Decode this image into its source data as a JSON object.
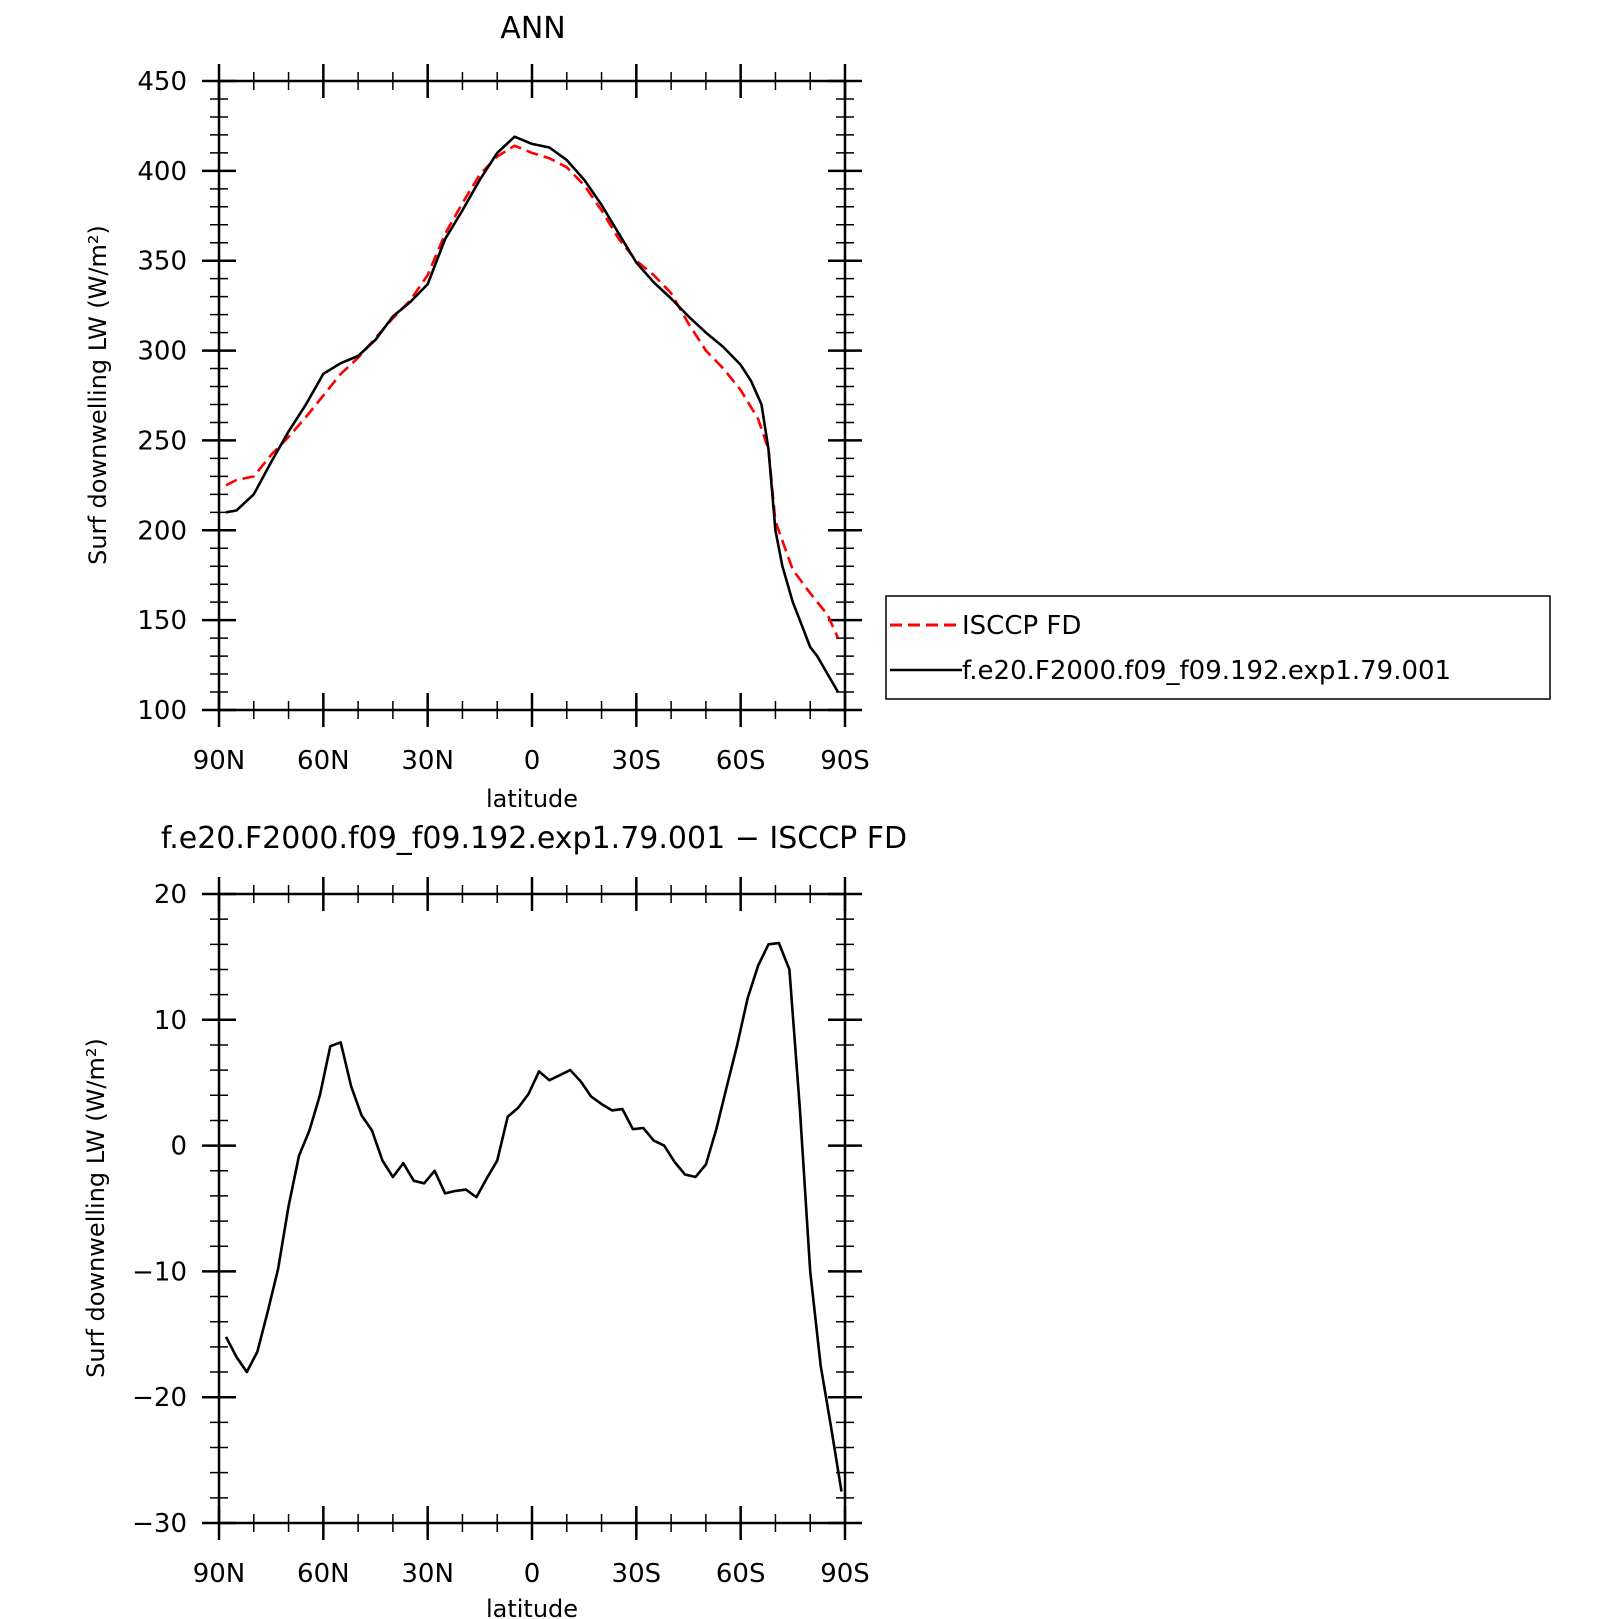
{
  "chart_data": [
    {
      "type": "line",
      "title": "ANN",
      "xlabel": "latitude",
      "ylabel": "Surf downwelling LW (W/m²)",
      "ylim": [
        100,
        450
      ],
      "yticks": [
        100,
        150,
        200,
        250,
        300,
        350,
        400,
        450
      ],
      "xlim": [
        90,
        -90
      ],
      "xticks": [
        90,
        60,
        30,
        0,
        -30,
        -60,
        -90
      ],
      "xtick_labels": [
        "90N",
        "60N",
        "30N",
        "0",
        "30S",
        "60S",
        "90S"
      ],
      "grid": false,
      "legend_position": "right",
      "series": [
        {
          "name": "ISCCP FD",
          "color": "#ff0000",
          "dash": "dashed",
          "x": [
            88,
            85,
            80,
            75,
            70,
            65,
            60,
            55,
            50,
            45,
            40,
            35,
            30,
            25,
            20,
            15,
            10,
            5,
            0,
            -5,
            -10,
            -15,
            -20,
            -25,
            -30,
            -35,
            -40,
            -45,
            -50,
            -55,
            -60,
            -65,
            -68,
            -70,
            -75,
            -80,
            -85,
            -88
          ],
          "y": [
            225,
            228,
            230,
            242,
            252,
            263,
            275,
            287,
            296,
            307,
            318,
            328,
            342,
            365,
            382,
            398,
            408,
            414,
            410,
            407,
            402,
            392,
            378,
            362,
            350,
            342,
            332,
            315,
            300,
            290,
            278,
            262,
            245,
            205,
            178,
            165,
            153,
            140
          ]
        },
        {
          "name": "f.e20.F2000.f09_f09.192.exp1.79.001",
          "color": "#000000",
          "dash": "solid",
          "x": [
            88,
            85,
            80,
            75,
            70,
            65,
            60,
            55,
            50,
            45,
            40,
            35,
            30,
            25,
            20,
            15,
            10,
            5,
            0,
            -5,
            -10,
            -15,
            -20,
            -25,
            -30,
            -35,
            -40,
            -45,
            -50,
            -55,
            -60,
            -63,
            -66,
            -68,
            -70,
            -72,
            -75,
            -78,
            -80,
            -82,
            -85,
            -88
          ],
          "y": [
            210,
            211,
            220,
            238,
            255,
            270,
            287,
            293,
            297,
            306,
            319,
            327,
            337,
            362,
            378,
            395,
            410,
            419,
            415,
            413,
            406,
            395,
            381,
            365,
            349,
            338,
            329,
            319,
            310,
            302,
            292,
            283,
            270,
            245,
            200,
            180,
            160,
            145,
            135,
            130,
            120,
            110
          ]
        }
      ]
    },
    {
      "type": "line",
      "title": "f.e20.F2000.f09_f09.192.exp1.79.001 − ISCCP FD",
      "xlabel": "latitude",
      "ylabel": "Surf downwelling LW (W/m²)",
      "ylim": [
        -30,
        20
      ],
      "yticks": [
        -30,
        -20,
        -10,
        0,
        10,
        20
      ],
      "xlim": [
        90,
        -90
      ],
      "xticks": [
        90,
        60,
        30,
        0,
        -30,
        -60,
        -90
      ],
      "xtick_labels": [
        "90N",
        "60N",
        "30N",
        "0",
        "30S",
        "60S",
        "90S"
      ],
      "grid": false,
      "series": [
        {
          "color": "#000000",
          "dash": "solid",
          "x": [
            88,
            85,
            82,
            79,
            76,
            73,
            70,
            67,
            64,
            61,
            58,
            55,
            52,
            49,
            46,
            43,
            40,
            37,
            34,
            31,
            28,
            25,
            22,
            19,
            16,
            13,
            10,
            7,
            4,
            1,
            -2,
            -5,
            -8,
            -11,
            -14,
            -17,
            -20,
            -23,
            -26,
            -29,
            -32,
            -35,
            -38,
            -41,
            -44,
            -47,
            -50,
            -53,
            -56,
            -59,
            -62,
            -65,
            -68,
            -71,
            -74,
            -77,
            -80,
            -83,
            -86,
            -89
          ],
          "y": [
            -15.2,
            -16.8,
            -18.0,
            -16.4,
            -13.2,
            -9.8,
            -4.8,
            -0.8,
            1.2,
            4.0,
            7.9,
            8.2,
            4.7,
            2.4,
            1.2,
            -1.2,
            -2.5,
            -1.4,
            -2.8,
            -3.0,
            -2.0,
            -3.8,
            -3.6,
            -3.5,
            -4.1,
            -2.6,
            -1.2,
            2.3,
            3.0,
            4.1,
            5.9,
            5.2,
            5.6,
            6.0,
            5.1,
            3.9,
            3.3,
            2.8,
            2.9,
            1.3,
            1.4,
            0.4,
            0.0,
            -1.3,
            -2.3,
            -2.5,
            -1.5,
            1.3,
            4.7,
            8.0,
            11.7,
            14.3,
            16.0,
            16.1,
            14.0,
            3.0,
            -10.0,
            -17.5,
            -22.4,
            -27.5
          ]
        }
      ]
    }
  ]
}
